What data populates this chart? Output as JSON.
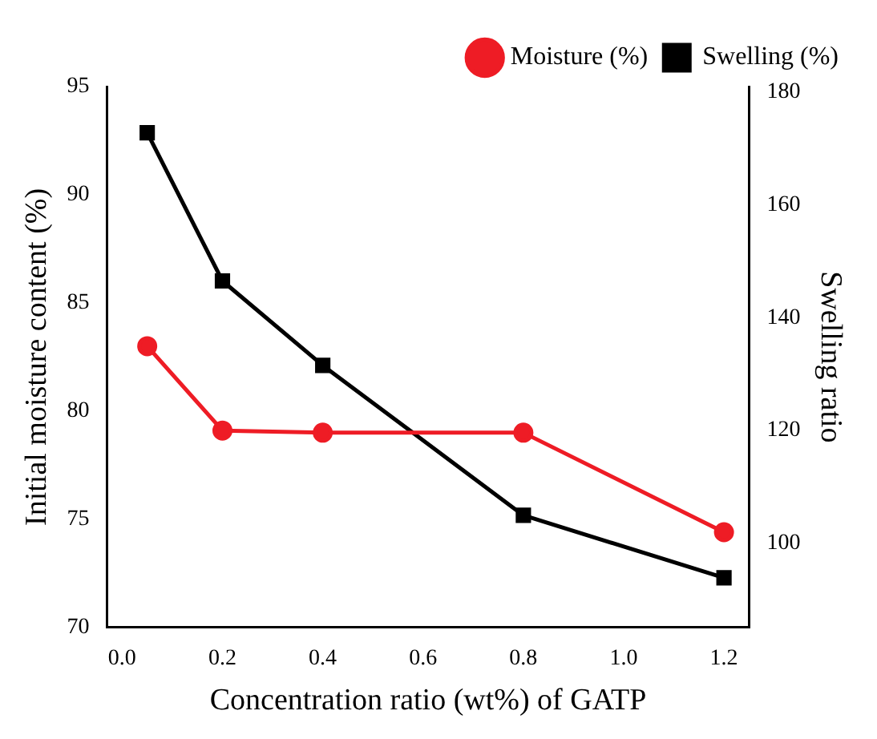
{
  "chart_data": {
    "type": "line",
    "xlabel": "Concentration ratio (wt%) of GATP",
    "ylabel": "Initial moisture content (%)",
    "y2label": "Swelling ratio",
    "x": [
      0.05,
      0.2,
      0.4,
      0.8,
      1.2
    ],
    "series": [
      {
        "name": "Moisture (%)",
        "color": "#ee1c25",
        "marker": "circle",
        "values": [
          83,
          79.1,
          79,
          79,
          74.4
        ]
      },
      {
        "name": "Swelling (%)",
        "color": "#000000",
        "marker": "square",
        "axis": "y2",
        "values": [
          172.8,
          146.5,
          131.5,
          104.9,
          93.8
        ]
      }
    ],
    "xlim": [
      -0.03,
      1.25
    ],
    "xticks": [
      {
        "value": 0,
        "label": "0.0"
      },
      {
        "value": 0.2,
        "label": "0.2"
      },
      {
        "value": 0.4,
        "label": "0.4"
      },
      {
        "value": 0.6,
        "label": "0.6"
      },
      {
        "value": 0.8,
        "label": "0.8"
      },
      {
        "value": 1,
        "label": "1.0"
      },
      {
        "value": 1.2,
        "label": "1.2"
      }
    ],
    "ylim": [
      70,
      95
    ],
    "yticks": [
      70,
      75,
      80,
      85,
      90,
      95
    ],
    "y2lim": [
      85,
      181
    ],
    "y2ticks": [
      100,
      120,
      140,
      160,
      180
    ],
    "grid": false,
    "legend": "top right",
    "line_style": "solid"
  }
}
